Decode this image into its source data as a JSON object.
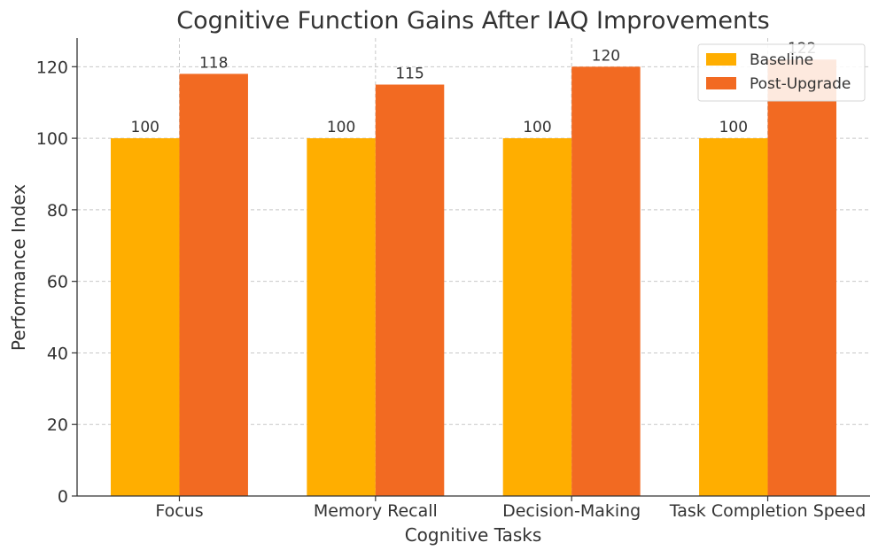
{
  "chart_data": {
    "type": "bar",
    "title": "Cognitive Function Gains After IAQ Improvements",
    "xlabel": "Cognitive Tasks",
    "ylabel": "Performance Index",
    "categories": [
      "Focus",
      "Memory Recall",
      "Decision-Making",
      "Task Completion Speed"
    ],
    "series": [
      {
        "name": "Baseline",
        "values": [
          100,
          100,
          100,
          100
        ],
        "color": "#FFAE00"
      },
      {
        "name": "Post-Upgrade",
        "values": [
          118,
          115,
          120,
          122
        ],
        "color": "#F26A22"
      }
    ],
    "ylim": [
      0,
      128
    ],
    "yticks": [
      0,
      20,
      40,
      60,
      80,
      100,
      120
    ],
    "grid": true,
    "legend_position": "top-right"
  }
}
